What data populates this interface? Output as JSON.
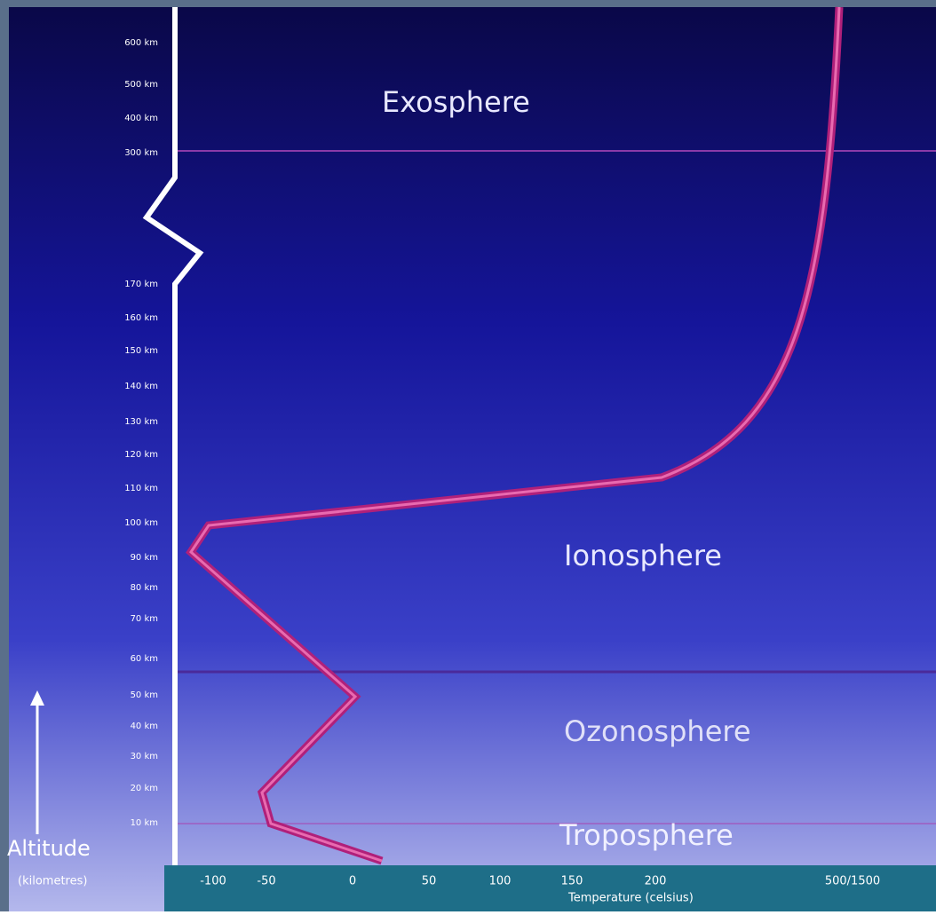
{
  "layers": [
    "Exosphere",
    "Ionosphere",
    "Ozonosphere",
    "Troposphere"
  ],
  "altitude_labels": [
    "600 km",
    "500 km",
    "400 km",
    "300 km",
    "170 km",
    "160 km",
    "150 km",
    "140 km",
    "130 km",
    "120 km",
    "110 km",
    "100 km",
    "90 km",
    "80 km",
    "70 km",
    "60 km",
    "50 km",
    "40 km",
    "30 km",
    "20 km",
    "10 km"
  ],
  "altitude_axis": {
    "title": "Altitude",
    "unit": "(kilometres)"
  },
  "temperature_labels": [
    "-100",
    "-50",
    "0",
    "50",
    "100",
    "150",
    "200",
    "500/1500"
  ],
  "temperature_axis": {
    "title": "Temperature (celsius)"
  }
}
